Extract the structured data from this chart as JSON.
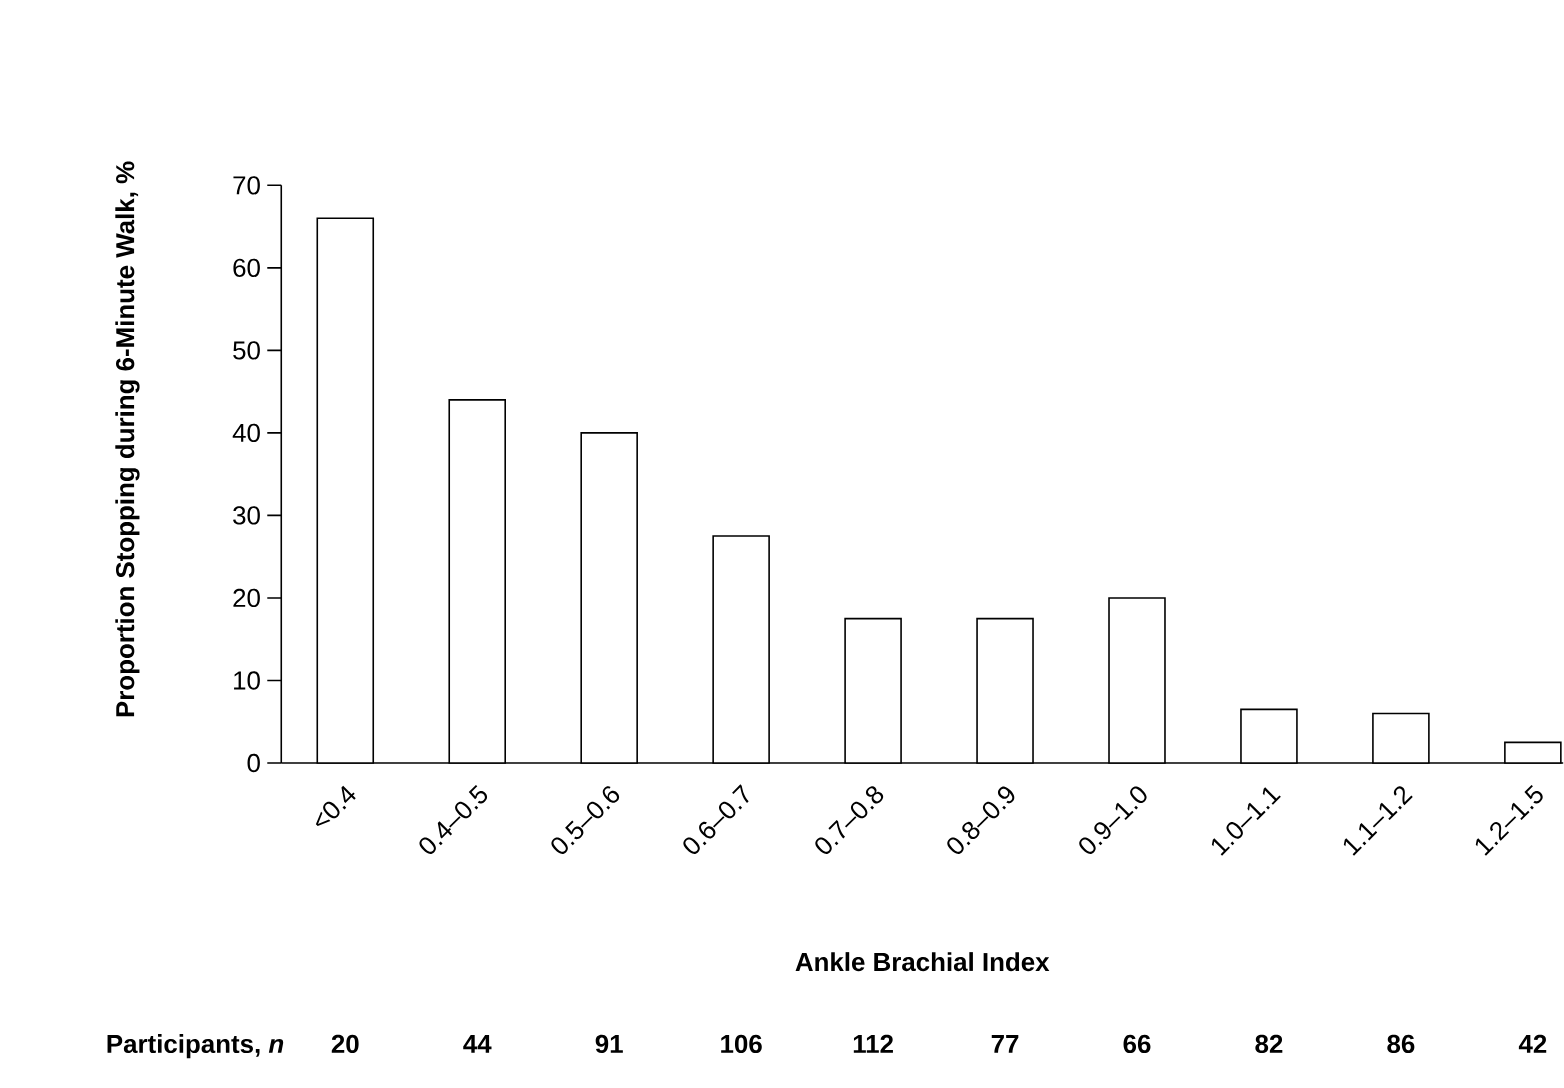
{
  "chart_data": {
    "type": "bar",
    "xlabel": "Ankle Brachial Index",
    "ylabel": "Proportion Stopping during 6-Minute Walk, %",
    "categories": [
      "<0.4",
      "0.4–0.5",
      "0.5–0.6",
      "0.6–0.7",
      "0.7–0.8",
      "0.8–0.9",
      "0.9–1.0",
      "1.0–1.1",
      "1.1–1.2",
      "1.2–1.5"
    ],
    "values": [
      66,
      44,
      40,
      27.5,
      17.5,
      17.5,
      20,
      6.5,
      6,
      2.5
    ],
    "color": "#ffffff",
    "ylim": [
      0,
      70
    ],
    "yticks": [
      0,
      10,
      20,
      30,
      40,
      50,
      60,
      70
    ],
    "annotations": [
      "Participants, *n*",
      "20",
      "44",
      "91",
      "106",
      "112",
      "77",
      "66",
      "82",
      "86",
      "42"
    ]
  }
}
